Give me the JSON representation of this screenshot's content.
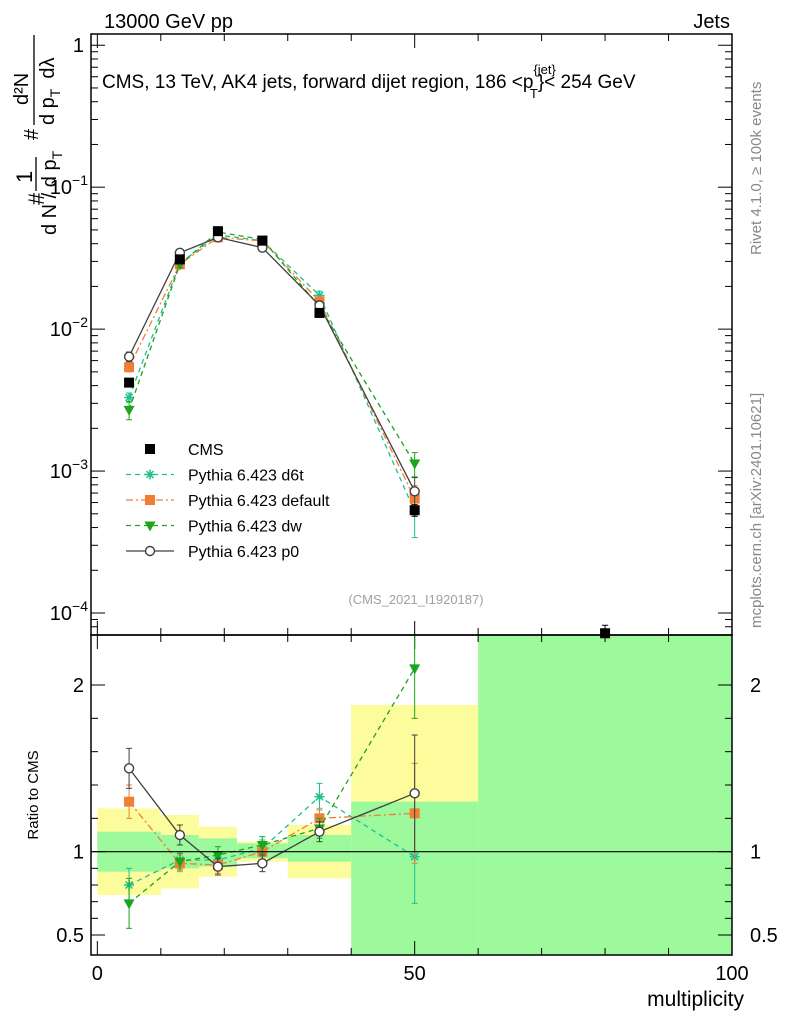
{
  "header": {
    "left": "13000 GeV pp",
    "right": "Jets"
  },
  "title": "CMS, 13 TeV, AK4 jets, forward dijet region, 186 <p",
  "title_sup": "{jet}",
  "title_sub": "T",
  "title_end": "}< 254 GeV",
  "side_label_top": "Rivet 4.1.0, ≥ 100k events",
  "side_label_bottom": "mcplots.cern.ch [arXiv:2401.10621]",
  "watermark": "(CMS_2021_I1920187)",
  "ylabel_top": {
    "one": "1",
    "den": "d N / d p",
    "den_sub": "T",
    "hash": "#",
    "num": "d²N",
    "num_den": "d p",
    "num_den_sub": "T",
    "num_den_end": "dλ"
  },
  "ylabel_ratio": "Ratio to CMS",
  "xlabel": "multiplicity",
  "colors": {
    "cms": "#000000",
    "d6t": "#1fbf8f",
    "default": "#f07f35",
    "dw": "#1aa51a",
    "p0": "#404040",
    "band_inner": "#9cf99c",
    "band_outer": "#fcfc9c"
  },
  "chart_data": {
    "type": "scatter",
    "x_range": [
      -1,
      100
    ],
    "main_yscale": "log",
    "main_ylim": [
      7e-05,
      1.2
    ],
    "ratio_ylim": [
      0.38,
      2.3
    ],
    "x_ticks": [
      0,
      50,
      100
    ],
    "x_tick_labels": [
      "0",
      "50",
      "100"
    ],
    "main_y_ticks": [
      1,
      0.1,
      0.01,
      0.001,
      0.0001
    ],
    "main_y_tick_labels": [
      {
        "base": "1",
        "exp": ""
      },
      {
        "base": "10",
        "exp": "−1"
      },
      {
        "base": "10",
        "exp": "−2"
      },
      {
        "base": "10",
        "exp": "−3"
      },
      {
        "base": "10",
        "exp": "−4"
      }
    ],
    "ratio_y_ticks": [
      0.5,
      1,
      2
    ],
    "ratio_y_tick_labels": [
      "0.5",
      "1",
      "2"
    ],
    "bins": [
      [
        0,
        10
      ],
      [
        10,
        16
      ],
      [
        16,
        22
      ],
      [
        22,
        30
      ],
      [
        30,
        40
      ],
      [
        40,
        60
      ],
      [
        60,
        100
      ]
    ],
    "series": [
      {
        "key": "cms",
        "name": "CMS",
        "marker": "square",
        "line": "none",
        "x": [
          5,
          13,
          19,
          26,
          35,
          50,
          80
        ],
        "y": [
          0.0042,
          0.031,
          0.049,
          0.042,
          0.013,
          0.00053,
          7.2e-05
        ],
        "yerr": [
          0.0002,
          0.001,
          0.0015,
          0.0012,
          0.0005,
          5e-05,
          1e-05
        ]
      },
      {
        "key": "d6t",
        "name": "Pythia 6.423 d6t",
        "marker": "star",
        "line": "dash",
        "x": [
          5,
          13,
          19,
          26,
          35,
          50
        ],
        "y": [
          0.0033,
          0.029,
          0.046,
          0.042,
          0.0173,
          0.00052
        ],
        "yerr": [
          0.00025,
          0.0015,
          0.002,
          0.002,
          0.0012,
          0.00018
        ],
        "ratio": [
          0.8,
          0.95,
          0.95,
          1.02,
          1.33,
          0.97
        ],
        "ratio_err": [
          0.1,
          0.05,
          0.05,
          0.05,
          0.08,
          0.28
        ]
      },
      {
        "key": "default",
        "name": "Pythia 6.423 default",
        "marker": "square",
        "line": "dashdot",
        "x": [
          5,
          13,
          19,
          26,
          35,
          50
        ],
        "y": [
          0.0054,
          0.0286,
          0.0443,
          0.0418,
          0.0157,
          0.00064
        ],
        "yerr": [
          0.0004,
          0.0015,
          0.002,
          0.002,
          0.001,
          0.00015
        ],
        "ratio": [
          1.3,
          0.93,
          0.92,
          1.0,
          1.2,
          1.23
        ],
        "ratio_err": [
          0.1,
          0.05,
          0.05,
          0.05,
          0.06,
          0.3
        ]
      },
      {
        "key": "dw",
        "name": "Pythia 6.423 dw",
        "marker": "triangle-down",
        "line": "dash",
        "x": [
          5,
          13,
          19,
          26,
          35,
          50
        ],
        "y": [
          0.0027,
          0.0286,
          0.0483,
          0.0428,
          0.0144,
          0.00113
        ],
        "yerr": [
          0.0004,
          0.0015,
          0.002,
          0.002,
          0.001,
          0.00022
        ],
        "ratio": [
          0.69,
          0.94,
          0.98,
          1.04,
          1.14,
          2.1
        ],
        "ratio_err": [
          0.15,
          0.05,
          0.05,
          0.05,
          0.06,
          0.3
        ]
      },
      {
        "key": "p0",
        "name": "Pythia 6.423 p0",
        "marker": "circle-open",
        "line": "solid",
        "x": [
          5,
          13,
          19,
          26,
          35,
          50
        ],
        "y": [
          0.0064,
          0.0345,
          0.0443,
          0.0375,
          0.0147,
          0.00072
        ],
        "yerr": [
          0.0005,
          0.0015,
          0.002,
          0.002,
          0.001,
          0.00018
        ],
        "ratio": [
          1.5,
          1.1,
          0.91,
          0.93,
          1.12,
          1.35
        ],
        "ratio_err": [
          0.12,
          0.06,
          0.05,
          0.05,
          0.06,
          0.35
        ]
      }
    ],
    "ratio_bands": {
      "inner": [
        [
          0.88,
          1.12
        ],
        [
          0.9,
          1.1
        ],
        [
          0.91,
          1.08
        ],
        [
          0.96,
          1.05
        ],
        [
          0.94,
          1.1
        ],
        [
          0.0,
          1.3
        ],
        [
          0.0,
          10
        ]
      ],
      "outer": [
        [
          0.74,
          1.26
        ],
        [
          0.78,
          1.22
        ],
        [
          0.85,
          1.15
        ],
        [
          0.94,
          1.06
        ],
        [
          0.84,
          1.16
        ],
        [
          0.58,
          1.88
        ],
        [
          0.0,
          10
        ]
      ]
    },
    "legend": {
      "position": "middle-left",
      "entries": [
        "CMS",
        "Pythia 6.423 d6t",
        "Pythia 6.423 default",
        "Pythia 6.423 dw",
        "Pythia 6.423 p0"
      ]
    }
  }
}
